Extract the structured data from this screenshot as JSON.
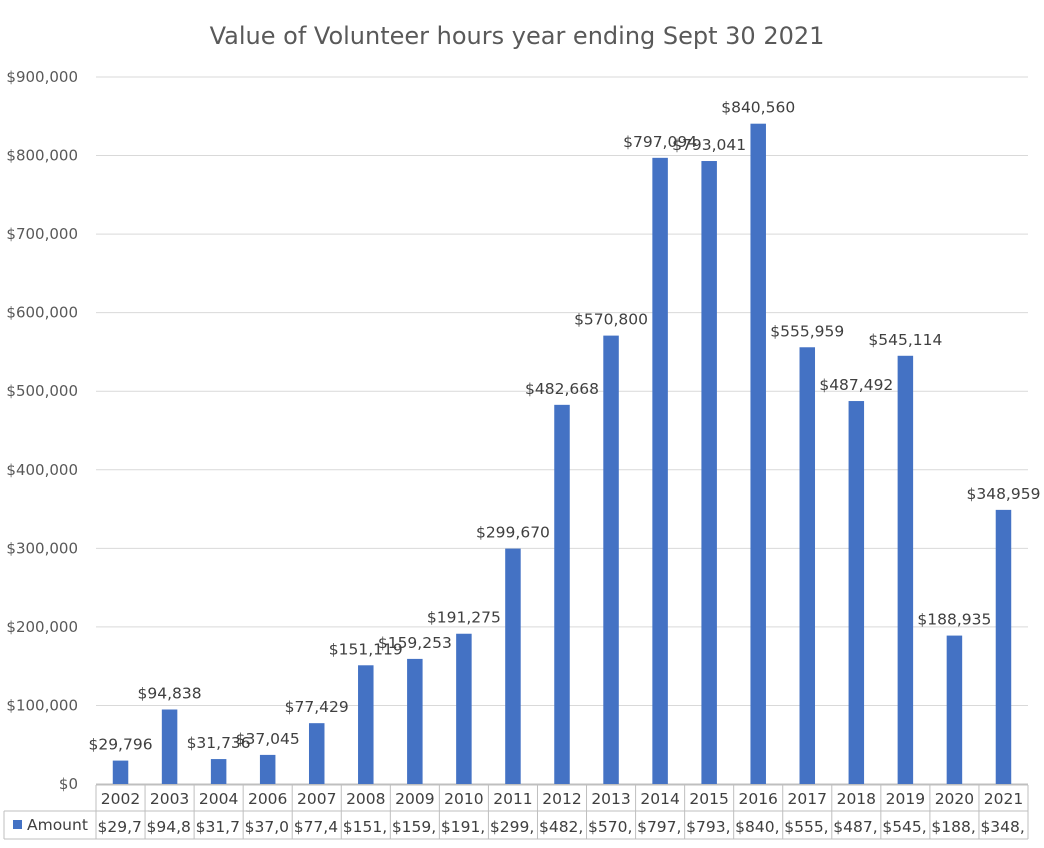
{
  "chart_data": {
    "type": "bar",
    "title": "Value of Volunteer hours year ending Sept 30 2021",
    "categories": [
      "2002",
      "2003",
      "2004",
      "2006",
      "2007",
      "2008",
      "2009",
      "2010",
      "2011",
      "2012",
      "2013",
      "2014",
      "2015",
      "2016",
      "2017",
      "2018",
      "2019",
      "2020",
      "2021"
    ],
    "series": [
      {
        "name": "Amount",
        "color": "#4472C4",
        "values": [
          29796,
          94838,
          31736,
          37045,
          77429,
          151119,
          159253,
          191275,
          299670,
          482668,
          570800,
          797094,
          793041,
          840560,
          555959,
          487492,
          545114,
          188935,
          348959
        ],
        "data_labels": [
          "$29,796",
          "$94,838",
          "$31,736",
          "$37,045",
          "$77,429",
          "$151,119",
          "$159,253",
          "$191,275",
          "$299,670",
          "$482,668",
          "$570,800",
          "$797,094",
          "$793,041",
          "$840,560",
          "$555,959",
          "$487,492",
          "$545,114",
          "$188,935",
          "$348,959"
        ],
        "table_labels": [
          "$29,7",
          "$94,8",
          "$31,7",
          "$37,0",
          "$77,4",
          "$151,",
          "$159,",
          "$191,",
          "$299,",
          "$482,",
          "$570,",
          "$797,",
          "$793,",
          "$840,",
          "$555,",
          "$487,",
          "$545,",
          "$188,",
          "$348,"
        ]
      }
    ],
    "ylim": [
      0,
      900000
    ],
    "yticks": [
      0,
      100000,
      200000,
      300000,
      400000,
      500000,
      600000,
      700000,
      800000,
      900000
    ],
    "ytick_labels": [
      "$0",
      "$100,000",
      "$200,000",
      "$300,000",
      "$400,000",
      "$500,000",
      "$600,000",
      "$700,000",
      "$800,000",
      "$900,000"
    ],
    "xlabel": "",
    "ylabel": "",
    "grid": true,
    "legend": "data-table",
    "colors": {
      "gridline": "#D9D9D9",
      "table_border": "#BFBFBF"
    }
  }
}
